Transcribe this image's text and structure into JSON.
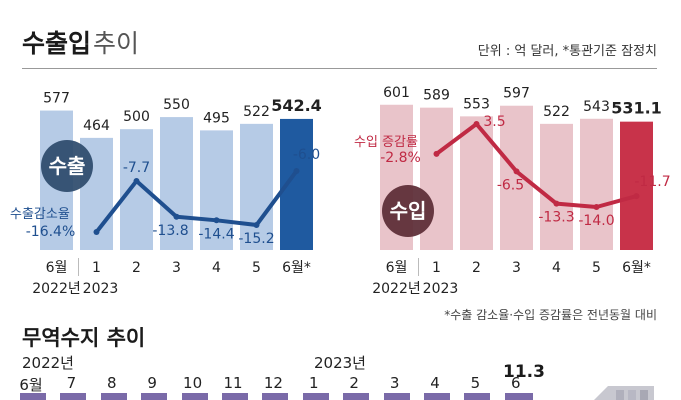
{
  "header": {
    "title_bold": "수출입",
    "title_light": "추이",
    "unit": "단위 : 억 달러, *통관기준 잠정치"
  },
  "chart_data": [
    {
      "type": "bar",
      "name": "수출",
      "categories": [
        "6월",
        "1",
        "2",
        "3",
        "4",
        "5",
        "6월*"
      ],
      "year_labels": [
        "2022년",
        "2023"
      ],
      "values": [
        577,
        464,
        500,
        550,
        495,
        522,
        542.4
      ],
      "value_labels": [
        "577",
        "464",
        "500",
        "550",
        "495",
        "522",
        "542.4"
      ],
      "line": {
        "label": "수출감소율",
        "values": [
          -16.4,
          -7.7,
          -13.8,
          -14.4,
          -15.2,
          -6.0
        ],
        "value_labels": [
          "-16.4%",
          "-7.7",
          "-13.8",
          "-14.4",
          "-15.2",
          "-6.0"
        ],
        "category_start_index": 1
      },
      "colors": {
        "bar": "#b6cbe6",
        "highlight": "#1f5aa0",
        "line": "#1f4f8f",
        "badge": "#2c4a6b"
      }
    },
    {
      "type": "bar",
      "name": "수입",
      "categories": [
        "6월",
        "1",
        "2",
        "3",
        "4",
        "5",
        "6월*"
      ],
      "year_labels": [
        "2022년",
        "2023"
      ],
      "values": [
        601,
        589,
        553,
        597,
        522,
        543,
        531.1
      ],
      "value_labels": [
        "601",
        "589",
        "553",
        "597",
        "522",
        "543",
        "531.1"
      ],
      "line": {
        "label": "수입 증감률",
        "values": [
          -2.8,
          3.5,
          -6.5,
          -13.3,
          -14.0,
          -11.7
        ],
        "value_labels": [
          "-2.8%",
          "3.5",
          "-6.5",
          "-13.3",
          "-14.0",
          "-11.7"
        ],
        "category_start_index": 1
      },
      "colors": {
        "bar": "#e9c4ca",
        "highlight": "#c8334a",
        "line": "#c02a44",
        "badge": "#5a2a34"
      }
    },
    {
      "type": "bar",
      "name": "무역수지 추이",
      "categories": [
        "6월",
        "7",
        "8",
        "9",
        "10",
        "11",
        "12",
        "1",
        "2",
        "3",
        "4",
        "5",
        "6"
      ],
      "year_labels": [
        "2022년",
        "2023년"
      ],
      "values": [
        null,
        null,
        null,
        null,
        null,
        null,
        null,
        null,
        null,
        null,
        null,
        null,
        11.3
      ],
      "value_labels": [
        "11.3"
      ]
    }
  ],
  "footnote": "*수출 감소율·수입 증감률은 전년동월 대비"
}
